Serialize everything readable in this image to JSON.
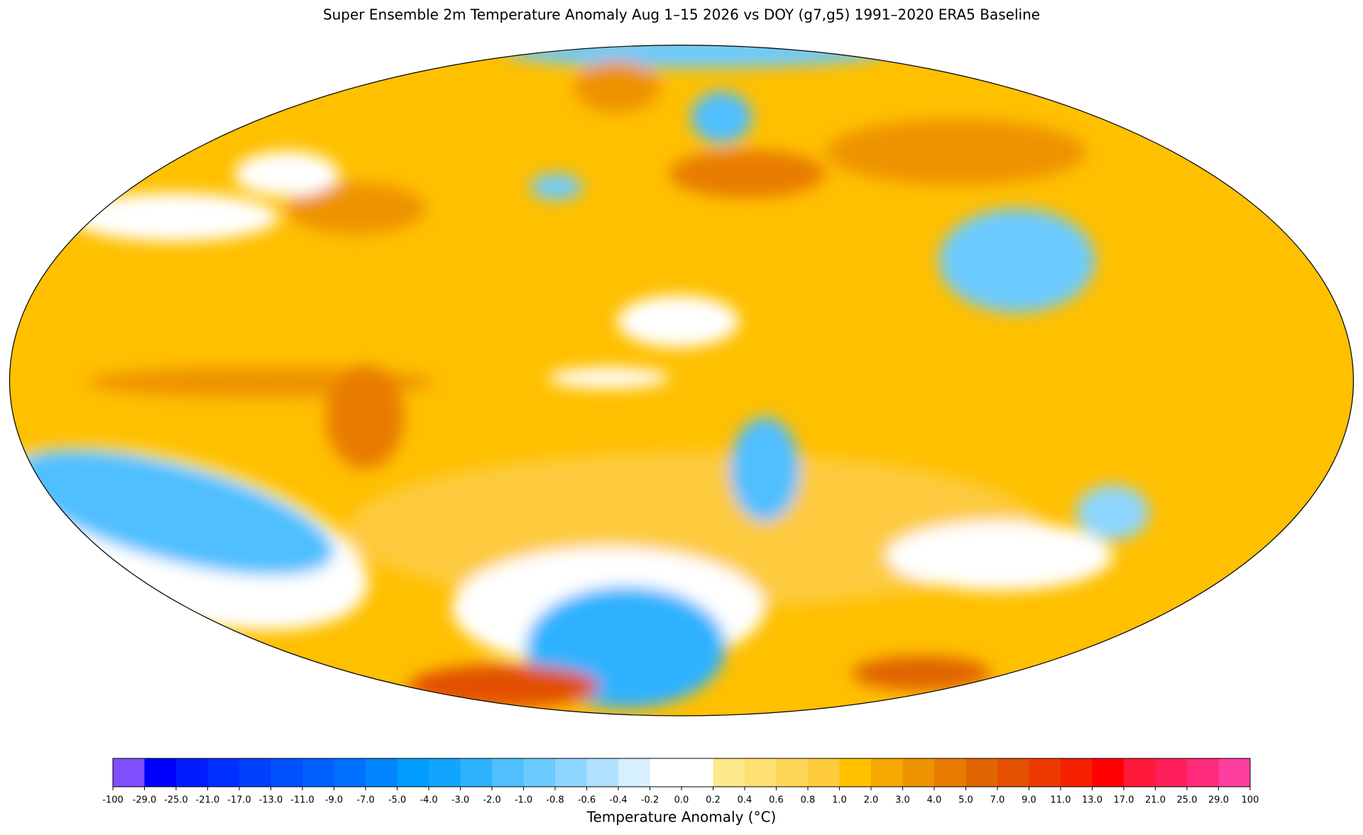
{
  "title": "Super Ensemble 2m Temperature Anomaly  Aug 1–15 2026  vs DOY (g7,g5) 1991–2020 ERA5 Baseline",
  "colorbar": {
    "label": "Temperature Anomaly (°C)",
    "ticks": [
      -100,
      {
        "value": -29,
        "label": "-29.0"
      },
      {
        "value": -25,
        "label": "-25.0"
      },
      {
        "value": -21,
        "label": "-21.0"
      },
      {
        "value": -17,
        "label": "-17.0"
      },
      {
        "value": -13,
        "label": "-13.0"
      },
      {
        "value": -11,
        "label": "-11.0"
      },
      {
        "value": -9,
        "label": "-9.0"
      },
      {
        "value": -7,
        "label": "-7.0"
      },
      {
        "value": -5,
        "label": "-5.0"
      },
      {
        "value": -4,
        "label": "-4.0"
      },
      {
        "value": -3,
        "label": "-3.0"
      },
      {
        "value": -2,
        "label": "-2.0"
      },
      {
        "value": -1,
        "label": "-1.0"
      },
      -0.8,
      -0.6,
      -0.4,
      -0.2,
      {
        "value": 0,
        "label": "0.0"
      },
      0.2,
      0.4,
      0.6,
      0.8,
      {
        "value": 1,
        "label": "1.0"
      },
      {
        "value": 2,
        "label": "2.0"
      },
      {
        "value": 3,
        "label": "3.0"
      },
      {
        "value": 4,
        "label": "4.0"
      },
      {
        "value": 5,
        "label": "5.0"
      },
      {
        "value": 7,
        "label": "7.0"
      },
      {
        "value": 9,
        "label": "9.0"
      },
      {
        "value": 11,
        "label": "11.0"
      },
      {
        "value": 13,
        "label": "13.0"
      },
      {
        "value": 17,
        "label": "17.0"
      },
      {
        "value": 21,
        "label": "21.0"
      },
      {
        "value": 25,
        "label": "25.0"
      },
      {
        "value": 29,
        "label": "29.0"
      },
      100
    ],
    "colors": [
      "#7f4fff",
      "#0000ff",
      "#001cff",
      "#0030ff",
      "#0040ff",
      "#0050ff",
      "#0060ff",
      "#0070ff",
      "#0085ff",
      "#009cff",
      "#12a5ff",
      "#2eb2ff",
      "#4fbfff",
      "#6ccbff",
      "#8dd6ff",
      "#b0e2ff",
      "#d6f0ff",
      "#ffffff",
      "#ffffff",
      "#fde98a",
      "#fde070",
      "#fdd655",
      "#fdcb3c",
      "#ffc000",
      "#f5a800",
      "#ee9300",
      "#e87c00",
      "#e06400",
      "#e25000",
      "#ec3a00",
      "#f52000",
      "#ff0000",
      "#ff1a3c",
      "#ff1f5a",
      "#ff2a7a",
      "#ff3fa0"
    ]
  }
}
